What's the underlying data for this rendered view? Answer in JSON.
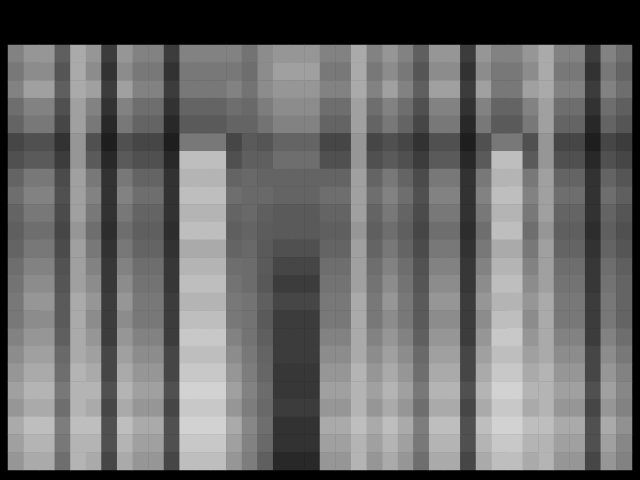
{
  "chart_data": {
    "type": "heatmap",
    "tick_labels": false,
    "grid": false,
    "color_range": [
      0,
      255
    ],
    "colors": [
      "#000000",
      "#ffffff"
    ],
    "cells": [
      [
        130,
        150,
        150,
        95,
        170,
        150,
        60,
        150,
        130,
        130,
        60,
        130,
        130,
        130,
        130,
        115,
        140,
        150,
        150,
        150,
        130,
        130,
        170,
        130,
        150,
        130,
        95,
        150,
        150,
        60,
        150,
        130,
        130,
        150,
        170,
        130,
        130,
        60,
        130,
        110
      ],
      [
        120,
        140,
        140,
        85,
        170,
        140,
        50,
        140,
        120,
        120,
        50,
        120,
        120,
        120,
        120,
        110,
        140,
        160,
        160,
        160,
        120,
        120,
        170,
        120,
        140,
        120,
        85,
        140,
        140,
        50,
        140,
        120,
        120,
        140,
        170,
        120,
        120,
        50,
        120,
        100
      ],
      [
        130,
        160,
        160,
        95,
        170,
        160,
        60,
        160,
        130,
        130,
        60,
        120,
        120,
        120,
        130,
        115,
        140,
        150,
        150,
        150,
        130,
        130,
        170,
        130,
        160,
        130,
        95,
        160,
        160,
        60,
        160,
        120,
        120,
        160,
        170,
        130,
        130,
        60,
        130,
        110
      ],
      [
        110,
        130,
        130,
        80,
        160,
        130,
        50,
        130,
        110,
        110,
        50,
        100,
        100,
        100,
        110,
        105,
        125,
        140,
        140,
        140,
        110,
        110,
        160,
        110,
        130,
        110,
        80,
        130,
        130,
        50,
        130,
        100,
        100,
        130,
        160,
        110,
        110,
        50,
        110,
        95
      ],
      [
        100,
        120,
        120,
        70,
        160,
        120,
        40,
        120,
        100,
        100,
        40,
        90,
        90,
        90,
        100,
        100,
        115,
        130,
        130,
        130,
        100,
        100,
        160,
        100,
        120,
        100,
        70,
        120,
        120,
        40,
        120,
        90,
        90,
        120,
        160,
        100,
        100,
        40,
        100,
        85
      ],
      [
        70,
        80,
        80,
        50,
        150,
        80,
        30,
        80,
        70,
        70,
        30,
        120,
        120,
        120,
        70,
        90,
        85,
        100,
        100,
        100,
        70,
        70,
        150,
        70,
        80,
        70,
        50,
        80,
        80,
        30,
        80,
        120,
        120,
        80,
        150,
        70,
        70,
        30,
        70,
        60
      ],
      [
        80,
        90,
        90,
        60,
        150,
        90,
        40,
        90,
        80,
        80,
        40,
        190,
        190,
        190,
        80,
        95,
        95,
        110,
        110,
        110,
        80,
        80,
        150,
        80,
        90,
        80,
        60,
        90,
        90,
        40,
        90,
        190,
        190,
        90,
        150,
        80,
        80,
        40,
        80,
        70
      ],
      [
        100,
        120,
        120,
        75,
        160,
        120,
        50,
        120,
        100,
        100,
        50,
        180,
        180,
        180,
        100,
        105,
        100,
        100,
        100,
        100,
        100,
        100,
        160,
        100,
        120,
        100,
        75,
        120,
        120,
        50,
        120,
        180,
        180,
        120,
        160,
        100,
        100,
        50,
        100,
        85
      ],
      [
        110,
        130,
        130,
        80,
        160,
        130,
        50,
        130,
        110,
        110,
        50,
        190,
        190,
        190,
        110,
        105,
        105,
        100,
        100,
        100,
        110,
        110,
        160,
        110,
        130,
        110,
        80,
        130,
        130,
        50,
        130,
        190,
        190,
        130,
        160,
        110,
        110,
        50,
        110,
        95
      ],
      [
        100,
        120,
        120,
        75,
        160,
        120,
        50,
        120,
        100,
        100,
        50,
        180,
        180,
        180,
        100,
        105,
        95,
        90,
        90,
        90,
        100,
        100,
        160,
        100,
        120,
        100,
        75,
        120,
        120,
        50,
        120,
        180,
        180,
        120,
        160,
        100,
        100,
        50,
        100,
        85
      ],
      [
        95,
        110,
        110,
        70,
        150,
        110,
        45,
        110,
        95,
        95,
        45,
        190,
        190,
        190,
        95,
        100,
        92,
        90,
        90,
        90,
        95,
        95,
        150,
        95,
        110,
        95,
        70,
        110,
        110,
        45,
        110,
        190,
        190,
        110,
        150,
        95,
        95,
        45,
        95,
        80
      ],
      [
        100,
        120,
        120,
        75,
        160,
        120,
        50,
        120,
        100,
        100,
        50,
        170,
        170,
        170,
        100,
        105,
        90,
        80,
        80,
        80,
        100,
        100,
        160,
        100,
        120,
        100,
        75,
        120,
        120,
        50,
        120,
        170,
        170,
        120,
        160,
        100,
        100,
        50,
        100,
        85
      ],
      [
        110,
        130,
        130,
        82,
        160,
        130,
        55,
        130,
        110,
        110,
        55,
        180,
        180,
        180,
        110,
        108,
        90,
        70,
        70,
        70,
        110,
        110,
        160,
        110,
        130,
        110,
        82,
        130,
        130,
        55,
        130,
        180,
        180,
        130,
        160,
        110,
        110,
        55,
        110,
        95
      ],
      [
        115,
        140,
        140,
        85,
        160,
        140,
        55,
        140,
        115,
        115,
        55,
        190,
        190,
        190,
        115,
        108,
        88,
        60,
        60,
        60,
        115,
        115,
        160,
        115,
        140,
        115,
        85,
        140,
        140,
        55,
        140,
        190,
        190,
        140,
        160,
        115,
        115,
        55,
        115,
        100
      ],
      [
        120,
        150,
        150,
        90,
        170,
        150,
        60,
        150,
        120,
        120,
        60,
        180,
        180,
        180,
        120,
        115,
        95,
        70,
        70,
        70,
        120,
        120,
        170,
        120,
        150,
        120,
        90,
        150,
        150,
        60,
        150,
        180,
        180,
        150,
        170,
        120,
        120,
        60,
        120,
        100
      ],
      [
        120,
        140,
        140,
        90,
        170,
        140,
        60,
        140,
        120,
        120,
        60,
        190,
        190,
        190,
        120,
        115,
        90,
        60,
        60,
        60,
        120,
        120,
        170,
        120,
        140,
        120,
        90,
        140,
        140,
        60,
        140,
        190,
        190,
        140,
        170,
        120,
        120,
        60,
        120,
        100
      ],
      [
        130,
        150,
        150,
        95,
        170,
        150,
        60,
        150,
        130,
        130,
        60,
        200,
        200,
        200,
        130,
        115,
        95,
        60,
        60,
        60,
        130,
        130,
        170,
        130,
        150,
        130,
        95,
        150,
        150,
        60,
        150,
        200,
        200,
        150,
        170,
        130,
        130,
        60,
        130,
        110
      ],
      [
        140,
        160,
        160,
        105,
        170,
        160,
        70,
        160,
        140,
        140,
        70,
        190,
        190,
        190,
        140,
        120,
        100,
        60,
        60,
        60,
        140,
        140,
        170,
        140,
        160,
        140,
        105,
        160,
        160,
        70,
        160,
        190,
        190,
        160,
        170,
        140,
        140,
        70,
        140,
        120
      ],
      [
        150,
        170,
        170,
        110,
        180,
        170,
        70,
        170,
        150,
        150,
        70,
        200,
        200,
        200,
        150,
        125,
        102,
        55,
        55,
        55,
        150,
        150,
        180,
        150,
        170,
        150,
        110,
        170,
        170,
        70,
        170,
        200,
        200,
        170,
        180,
        150,
        150,
        70,
        150,
        130
      ],
      [
        160,
        180,
        180,
        120,
        180,
        180,
        80,
        180,
        160,
        160,
        80,
        210,
        210,
        210,
        160,
        130,
        108,
        55,
        55,
        55,
        160,
        160,
        180,
        160,
        180,
        160,
        120,
        180,
        180,
        80,
        180,
        210,
        210,
        180,
        180,
        160,
        160,
        80,
        160,
        135
      ],
      [
        150,
        170,
        170,
        110,
        180,
        170,
        70,
        170,
        150,
        150,
        70,
        200,
        200,
        200,
        150,
        125,
        105,
        60,
        60,
        60,
        150,
        150,
        180,
        150,
        170,
        150,
        110,
        170,
        170,
        70,
        170,
        200,
        200,
        170,
        180,
        150,
        150,
        70,
        150,
        130
      ],
      [
        170,
        190,
        190,
        125,
        190,
        190,
        80,
        190,
        170,
        170,
        80,
        210,
        210,
        210,
        170,
        135,
        110,
        50,
        50,
        50,
        170,
        170,
        190,
        170,
        190,
        170,
        125,
        190,
        190,
        80,
        190,
        210,
        210,
        190,
        190,
        170,
        170,
        80,
        170,
        145
      ],
      [
        160,
        180,
        180,
        120,
        180,
        180,
        80,
        180,
        160,
        160,
        80,
        200,
        200,
        200,
        160,
        130,
        105,
        50,
        50,
        50,
        160,
        160,
        180,
        160,
        180,
        160,
        120,
        180,
        180,
        80,
        180,
        200,
        200,
        180,
        180,
        160,
        160,
        80,
        160,
        135
      ],
      [
        150,
        170,
        170,
        110,
        180,
        170,
        70,
        170,
        150,
        150,
        70,
        190,
        190,
        190,
        150,
        125,
        95,
        40,
        40,
        40,
        150,
        150,
        180,
        150,
        170,
        150,
        110,
        170,
        170,
        70,
        170,
        190,
        190,
        170,
        180,
        150,
        150,
        70,
        150,
        130
      ]
    ]
  }
}
